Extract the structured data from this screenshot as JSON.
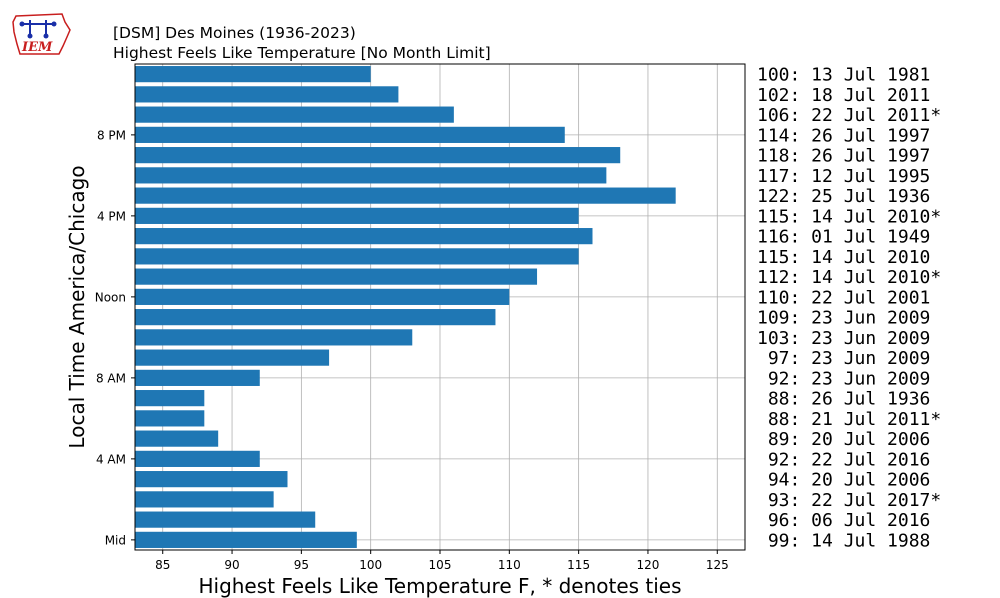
{
  "header": {
    "logo_text": "IEM",
    "title": "[DSM] Des Moines (1936-2023)",
    "subtitle": "Highest Feels Like Temperature [No Month Limit]"
  },
  "chart_data": {
    "type": "bar",
    "orientation": "horizontal",
    "xlabel": "Highest Feels Like Temperature F, * denotes ties",
    "ylabel": "Local Time America/Chicago",
    "xlim": [
      83,
      127
    ],
    "xticks": [
      85,
      90,
      95,
      100,
      105,
      110,
      115,
      120,
      125
    ],
    "ylim": [
      -0.5,
      23.5
    ],
    "yticks": [
      {
        "hour": 0,
        "label": "Mid"
      },
      {
        "hour": 4,
        "label": "4 AM"
      },
      {
        "hour": 8,
        "label": "8 AM"
      },
      {
        "hour": 12,
        "label": "Noon"
      },
      {
        "hour": 16,
        "label": "4 PM"
      },
      {
        "hour": 20,
        "label": "8 PM"
      }
    ],
    "grid": true,
    "bar_color": "#1f77b4",
    "bars": [
      {
        "hour": 0,
        "value": 99,
        "label": "99: 14 Jul 1988"
      },
      {
        "hour": 1,
        "value": 96,
        "label": "96: 06 Jul 2016"
      },
      {
        "hour": 2,
        "value": 93,
        "label": "93: 22 Jul 2017*"
      },
      {
        "hour": 3,
        "value": 94,
        "label": "94: 20 Jul 2006"
      },
      {
        "hour": 4,
        "value": 92,
        "label": "92: 22 Jul 2016"
      },
      {
        "hour": 5,
        "value": 89,
        "label": "89: 20 Jul 2006"
      },
      {
        "hour": 6,
        "value": 88,
        "label": "88: 21 Jul 2011*"
      },
      {
        "hour": 7,
        "value": 88,
        "label": "88: 26 Jul 1936"
      },
      {
        "hour": 8,
        "value": 92,
        "label": "92: 23 Jun 2009"
      },
      {
        "hour": 9,
        "value": 97,
        "label": "97: 23 Jun 2009"
      },
      {
        "hour": 10,
        "value": 103,
        "label": "103: 23 Jun 2009"
      },
      {
        "hour": 11,
        "value": 109,
        "label": "109: 23 Jun 2009"
      },
      {
        "hour": 12,
        "value": 110,
        "label": "110: 22 Jul 2001"
      },
      {
        "hour": 13,
        "value": 112,
        "label": "112: 14 Jul 2010*"
      },
      {
        "hour": 14,
        "value": 115,
        "label": "115: 14 Jul 2010"
      },
      {
        "hour": 15,
        "value": 116,
        "label": "116: 01 Jul 1949"
      },
      {
        "hour": 16,
        "value": 115,
        "label": "115: 14 Jul 2010*"
      },
      {
        "hour": 17,
        "value": 122,
        "label": "122: 25 Jul 1936"
      },
      {
        "hour": 18,
        "value": 117,
        "label": "117: 12 Jul 1995"
      },
      {
        "hour": 19,
        "value": 118,
        "label": "118: 26 Jul 1997"
      },
      {
        "hour": 20,
        "value": 114,
        "label": "114: 26 Jul 1997"
      },
      {
        "hour": 21,
        "value": 106,
        "label": "106: 22 Jul 2011*"
      },
      {
        "hour": 22,
        "value": 102,
        "label": "102: 18 Jul 2011"
      },
      {
        "hour": 23,
        "value": 100,
        "label": "100: 13 Jul 1981"
      }
    ]
  }
}
